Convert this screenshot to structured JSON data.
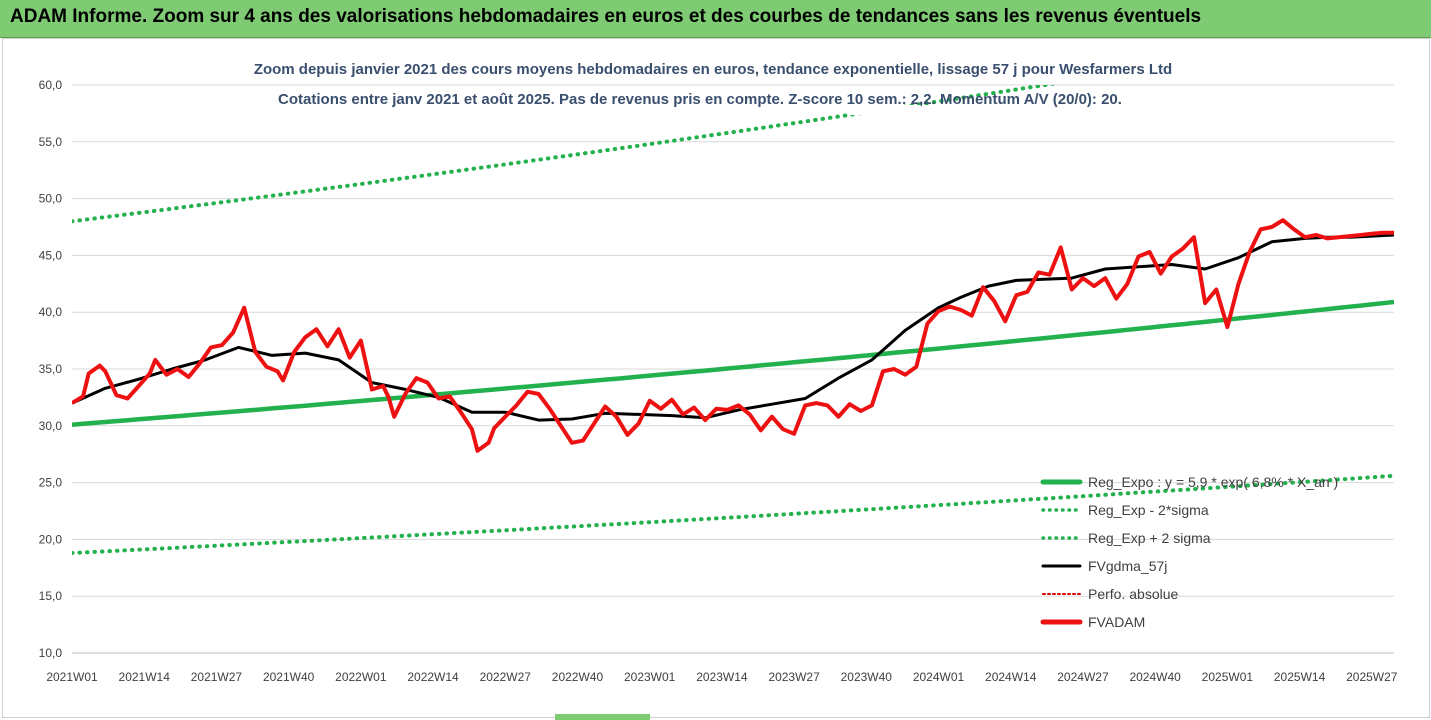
{
  "header": {
    "banner": "ADAM Informe. Zoom sur 4 ans des valorisations hebdomadaires en euros et des courbes de tendances sans les revenus éventuels",
    "banner_color": "#7ecb73"
  },
  "chart_data": {
    "type": "line",
    "title": "Zoom depuis janvier 2021 des cours moyens hebdomadaires en euros, tendance exponentielle, lissage 57 j pour Wesfarmers Ltd",
    "subtitle": "Cotations entre janv 2021 et août 2025.  Pas de revenus pris en compte. Z-score 10 sem.: 2,2. Momentum A/V (20/0): 20.",
    "ylim": [
      10,
      60
    ],
    "y_ticks": [
      "10,0",
      "15,0",
      "20,0",
      "25,0",
      "30,0",
      "35,0",
      "40,0",
      "45,0",
      "50,0",
      "55,0",
      "60,0"
    ],
    "x_tick_labels": [
      "2021W01",
      "2021W14",
      "2021W27",
      "2021W40",
      "2022W01",
      "2022W14",
      "2022W27",
      "2022W40",
      "2023W01",
      "2023W14",
      "2023W27",
      "2023W40",
      "2024W01",
      "2024W14",
      "2024W27",
      "2024W40",
      "2025W01",
      "2025W14",
      "2025W27"
    ],
    "x_range_weeks": [
      0,
      238
    ],
    "grid": true,
    "legend_position": "bottom-right",
    "colors": {
      "trend": "#22b14c",
      "bands": "#22b14c",
      "mma": "#000000",
      "perf": "#e00000",
      "price": "#ee1111"
    },
    "series": [
      {
        "name": "Reg_Expo : y = 5,9 * exp( 6,8% * X_an )",
        "style": "thick-green",
        "start": 30.1,
        "end": 40.9
      },
      {
        "name": "Reg_Exp - 2*sigma",
        "style": "dotted-green",
        "start": 18.8,
        "end": 25.6
      },
      {
        "name": "Reg_Exp + 2 sigma",
        "style": "dotted-green",
        "start": 48.0,
        "end": 65.0
      },
      {
        "name": "FVgdma_57j",
        "style": "black",
        "x": [
          0,
          6,
          12,
          18,
          24,
          30,
          36,
          42,
          48,
          54,
          60,
          66,
          72,
          78,
          84,
          90,
          96,
          102,
          108,
          114,
          120,
          126,
          132,
          138,
          144,
          150,
          156,
          160,
          165,
          170,
          175,
          180,
          186,
          192,
          198,
          204,
          210,
          216,
          222,
          226,
          230,
          234,
          238
        ],
        "values": [
          32.0,
          33.3,
          34.1,
          35.0,
          35.8,
          36.9,
          36.2,
          36.4,
          35.8,
          33.8,
          33.2,
          32.5,
          31.2,
          31.2,
          30.5,
          30.6,
          31.1,
          31.0,
          30.9,
          30.7,
          31.4,
          31.9,
          32.4,
          34.2,
          35.8,
          38.4,
          40.4,
          41.3,
          42.3,
          42.8,
          42.9,
          43.0,
          43.8,
          44.0,
          44.2,
          43.8,
          44.8,
          46.2,
          46.5,
          46.6,
          46.6,
          46.7,
          46.8
        ]
      },
      {
        "name": "Perfo. absolue",
        "style": "dotted-red",
        "values": []
      },
      {
        "name": "FVADAM",
        "style": "thick-red",
        "x": [
          0,
          2,
          3,
          5,
          6,
          8,
          10,
          12,
          14,
          15,
          17,
          19,
          21,
          23,
          25,
          27,
          29,
          31,
          33,
          35,
          37,
          38,
          40,
          42,
          44,
          46,
          48,
          50,
          52,
          54,
          56,
          57,
          58,
          60,
          62,
          64,
          66,
          68,
          70,
          72,
          73,
          75,
          76,
          78,
          80,
          82,
          84,
          86,
          88,
          90,
          92,
          94,
          96,
          98,
          100,
          102,
          104,
          106,
          108,
          110,
          112,
          114,
          116,
          118,
          120,
          122,
          124,
          126,
          128,
          130,
          132,
          134,
          136,
          138,
          140,
          142,
          144,
          146,
          148,
          150,
          152,
          154,
          156,
          158,
          160,
          162,
          164,
          166,
          168,
          170,
          172,
          174,
          176,
          178,
          180,
          182,
          184,
          186,
          188,
          190,
          192,
          194,
          196,
          198,
          200,
          202,
          204,
          206,
          208,
          210,
          212,
          214,
          216,
          218,
          220,
          222,
          224,
          226,
          228,
          230,
          232,
          234,
          236,
          238
        ],
        "values": [
          32.0,
          32.6,
          34.6,
          35.3,
          34.8,
          32.7,
          32.4,
          33.5,
          34.6,
          35.8,
          34.5,
          35.0,
          34.3,
          35.5,
          36.9,
          37.1,
          38.2,
          40.4,
          36.5,
          35.2,
          34.8,
          34.0,
          36.5,
          37.8,
          38.5,
          37.0,
          38.5,
          36.0,
          37.5,
          33.2,
          33.5,
          32.5,
          30.8,
          32.8,
          34.2,
          33.8,
          32.4,
          32.6,
          31.2,
          29.7,
          27.8,
          28.5,
          29.8,
          30.8,
          31.8,
          33.0,
          32.8,
          31.5,
          30.0,
          28.5,
          28.7,
          30.2,
          31.7,
          30.8,
          29.2,
          30.2,
          32.2,
          31.5,
          32.3,
          31.0,
          31.6,
          30.5,
          31.5,
          31.4,
          31.8,
          31.0,
          29.6,
          30.8,
          29.7,
          29.3,
          31.8,
          32.0,
          31.8,
          30.8,
          31.9,
          31.3,
          31.8,
          34.8,
          35.0,
          34.5,
          35.2,
          39.0,
          40.1,
          40.5,
          40.2,
          39.7,
          42.2,
          41.0,
          39.2,
          41.5,
          41.8,
          43.5,
          43.3,
          45.7,
          42.0,
          43.0,
          42.3,
          43.0,
          41.2,
          42.5,
          44.9,
          45.3,
          43.4,
          44.9,
          45.6,
          46.6,
          40.8,
          42.0,
          38.7,
          42.5,
          45.3,
          47.3,
          47.5,
          48.1,
          47.3,
          46.6,
          46.8,
          46.5,
          46.6,
          46.7,
          46.8,
          46.9,
          47.0,
          47.0
        ]
      }
    ]
  }
}
